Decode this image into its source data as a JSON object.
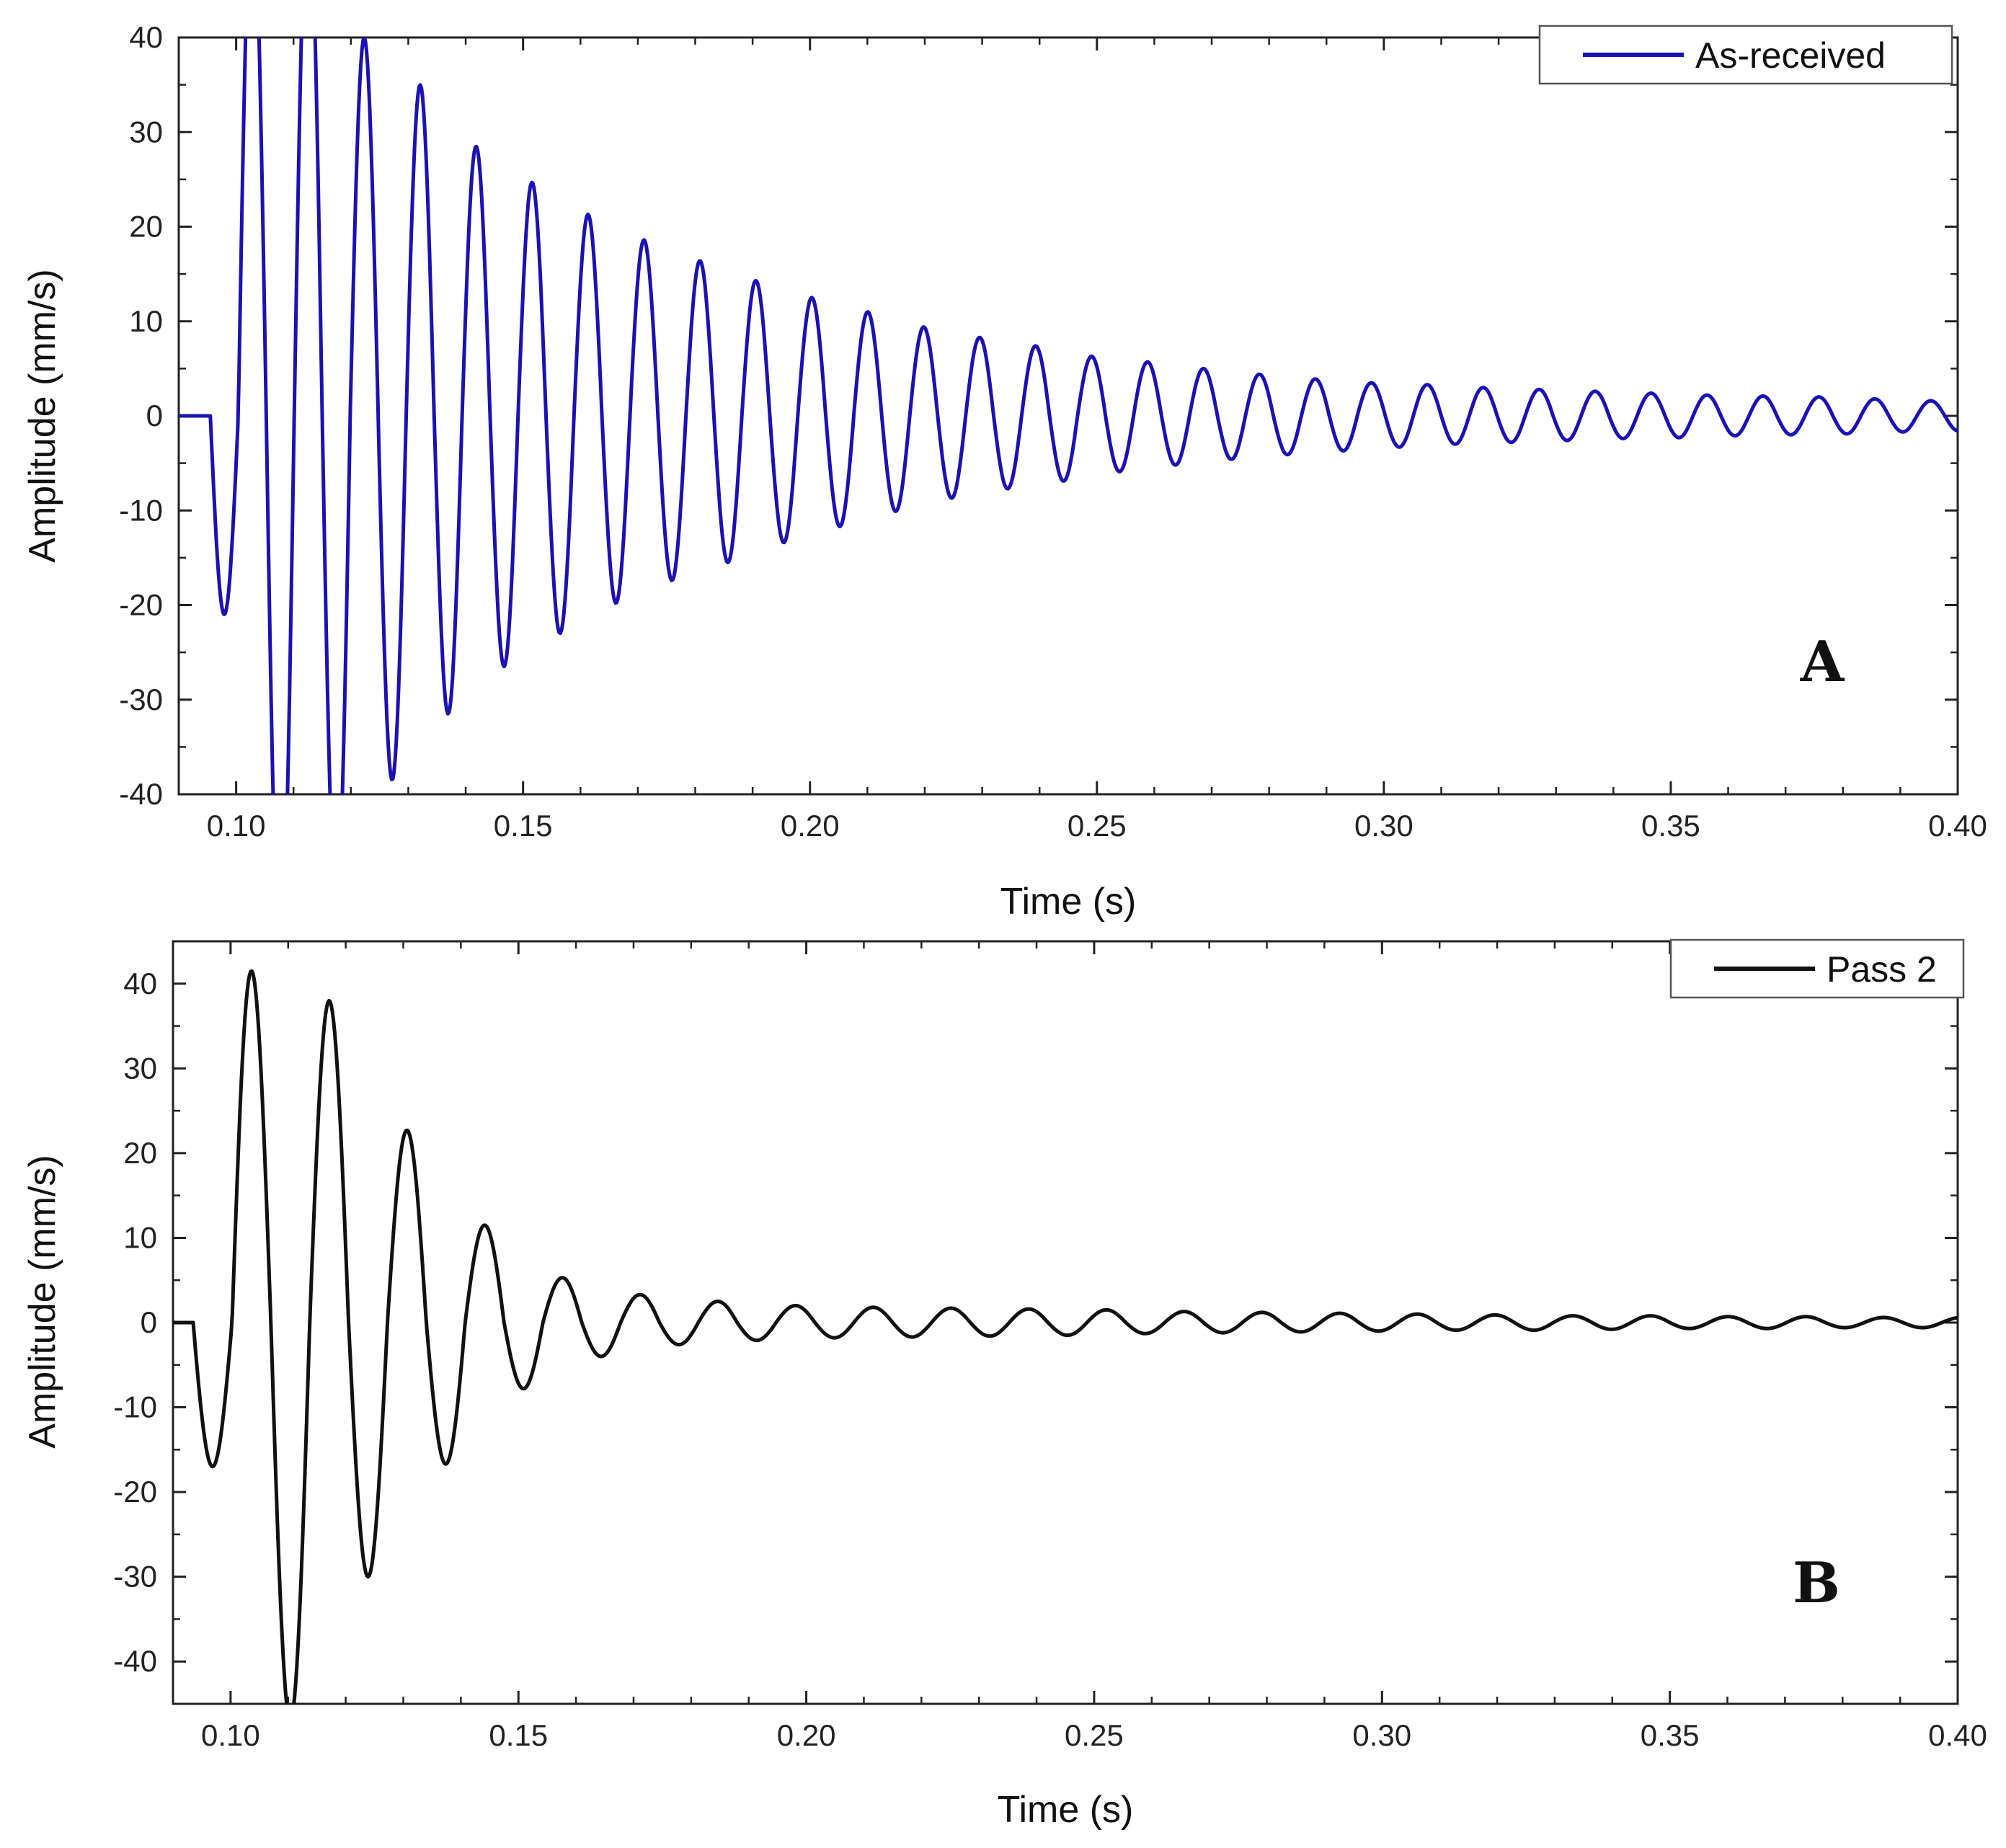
{
  "chart_data": [
    {
      "type": "line",
      "panel_label": "A",
      "xlabel": "Time (s)",
      "ylabel": "Amplitude (mm/s)",
      "xlim": [
        0.09,
        0.4
      ],
      "ylim": [
        -40,
        40
      ],
      "xticks": [
        "0.10",
        "0.15",
        "0.20",
        "0.25",
        "0.30",
        "0.35",
        "0.40"
      ],
      "yticks": [
        "40",
        "30",
        "20",
        "10",
        "0",
        "-10",
        "-20",
        "-30",
        "-40"
      ],
      "legend_position": "top-right",
      "grid": false,
      "series": [
        {
          "name": "As-received",
          "color": "#1a12b4",
          "t0": 0.0955,
          "period": 0.00975,
          "peaks": [
            -21,
            55,
            -58,
            56,
            -52,
            40,
            -38.5,
            35,
            -31.5,
            28.5,
            -26.5,
            24.7,
            -23,
            21.3,
            -19.8,
            18.6,
            -17.4,
            16.4,
            -15.5,
            14.3,
            -13.4,
            12.5,
            -11.7,
            11,
            -10.1,
            9.4,
            -8.7,
            8.3,
            -7.7,
            7.4,
            -6.9,
            6.3,
            -5.9,
            5.7,
            -5.2,
            5,
            -4.6,
            4.4,
            -4.1,
            3.9,
            -3.7,
            3.5,
            -3.3,
            3.3,
            -3,
            3,
            -2.8,
            2.8,
            -2.6,
            2.6,
            -2.4,
            2.4,
            -2.3,
            2.2,
            -2.1,
            2.1,
            -2,
            2,
            -1.9,
            1.8,
            -1.7,
            1.6,
            -1.6,
            1.5
          ]
        }
      ]
    },
    {
      "type": "line",
      "panel_label": "B",
      "xlabel": "Time (s)",
      "ylabel": "Amplitude (mm/s)",
      "xlim": [
        0.09,
        0.4
      ],
      "ylim": [
        -45,
        45
      ],
      "xticks": [
        "0.10",
        "0.15",
        "0.20",
        "0.25",
        "0.30",
        "0.35",
        "0.40"
      ],
      "yticks": [
        "40",
        "30",
        "20",
        "10",
        "0",
        "-10",
        "-20",
        "-30",
        "-40"
      ],
      "legend_position": "top-right",
      "grid": false,
      "series": [
        {
          "name": "Pass 2",
          "color": "#111111",
          "t0": 0.0935,
          "period": 0.0135,
          "peaks": [
            -17,
            41.5,
            -47,
            38,
            -30,
            22.7,
            -16.7,
            11.5,
            -7.8,
            5.3,
            -4,
            3.3,
            -2.6,
            2.5,
            -2.1,
            2,
            -1.8,
            1.8,
            -1.7,
            1.7,
            -1.6,
            1.6,
            -1.5,
            1.5,
            -1.3,
            1.3,
            -1.2,
            1.2,
            -1.1,
            1.1,
            -1,
            1,
            -0.9,
            0.9,
            -0.9,
            0.8,
            -0.8,
            0.8,
            -0.7,
            0.7,
            -0.7,
            0.7,
            -0.6,
            0.6,
            -0.6,
            0.6
          ]
        }
      ]
    }
  ]
}
